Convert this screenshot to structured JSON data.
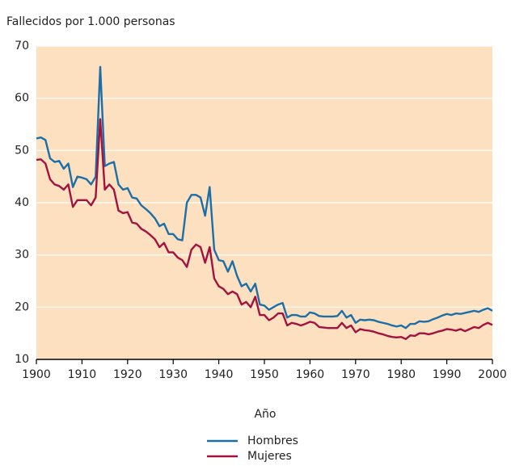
{
  "chart_data": {
    "type": "line",
    "title": "Fallecidos por 1.000 personas",
    "x_label": "Año",
    "x": [
      1900,
      1901,
      1902,
      1903,
      1904,
      1905,
      1906,
      1907,
      1908,
      1909,
      1910,
      1911,
      1912,
      1913,
      1914,
      1915,
      1916,
      1917,
      1918,
      1919,
      1920,
      1921,
      1922,
      1923,
      1924,
      1925,
      1926,
      1927,
      1928,
      1929,
      1930,
      1931,
      1932,
      1933,
      1934,
      1935,
      1936,
      1937,
      1938,
      1939,
      1940,
      1941,
      1942,
      1943,
      1944,
      1945,
      1946,
      1947,
      1948,
      1949,
      1950,
      1951,
      1952,
      1953,
      1954,
      1955,
      1956,
      1957,
      1958,
      1959,
      1960,
      1961,
      1962,
      1963,
      1964,
      1965,
      1966,
      1967,
      1968,
      1969,
      1970,
      1971,
      1972,
      1973,
      1974,
      1975,
      1976,
      1977,
      1978,
      1979,
      1980,
      1981,
      1982,
      1983,
      1984,
      1985,
      1986,
      1987,
      1988,
      1989,
      1990,
      1991,
      1992,
      1993,
      1994,
      1995,
      1996,
      1997,
      1998,
      1999,
      2000
    ],
    "series": [
      {
        "name": "Hombres",
        "color": "#1b6fa8",
        "values": [
          52.3,
          52.5,
          52,
          48.5,
          47.8,
          48,
          46.5,
          47.5,
          43,
          45,
          44.8,
          44.5,
          43.5,
          45,
          66,
          47,
          47.5,
          47.8,
          43.5,
          42.5,
          42.8,
          41,
          40.8,
          39.5,
          38.8,
          38,
          37,
          35.5,
          36,
          34,
          34,
          33,
          32.8,
          40,
          41.5,
          41.5,
          41,
          37.5,
          43,
          31,
          29,
          28.8,
          26.8,
          28.8,
          26,
          24,
          24.5,
          23,
          24.5,
          20.5,
          20.3,
          19.5,
          20,
          20.5,
          20.8,
          18,
          18.5,
          18.5,
          18.2,
          18.2,
          19,
          18.8,
          18.3,
          18.2,
          18.2,
          18.2,
          18.3,
          19.3,
          18,
          18.5,
          17,
          17.6,
          17.5,
          17.6,
          17.5,
          17.2,
          17,
          16.8,
          16.5,
          16.3,
          16.5,
          16,
          16.8,
          16.8,
          17.3,
          17.2,
          17.3,
          17.7,
          18,
          18.4,
          18.7,
          18.5,
          18.8,
          18.7,
          18.9,
          19.1,
          19.3,
          19.1,
          19.5,
          19.8,
          19.3
        ]
      },
      {
        "name": "Mujeres",
        "color": "#a3123f",
        "values": [
          48.2,
          48.3,
          47.5,
          44.5,
          43.5,
          43.2,
          42.5,
          43.5,
          39.2,
          40.5,
          40.5,
          40.5,
          39.5,
          41,
          56,
          42.5,
          43.5,
          42.5,
          38.5,
          38,
          38.2,
          36.2,
          36,
          35,
          34.5,
          33.8,
          33,
          31.5,
          32.3,
          30.5,
          30.5,
          29.5,
          29,
          27.7,
          31,
          32,
          31.5,
          28.5,
          31.5,
          25.5,
          24,
          23.5,
          22.5,
          23,
          22.5,
          20.5,
          21,
          20,
          22,
          18.5,
          18.5,
          17.5,
          18,
          18.8,
          18.8,
          16.5,
          17,
          16.8,
          16.5,
          16.8,
          17.2,
          17,
          16.2,
          16.1,
          16,
          16,
          16,
          17,
          16,
          16.5,
          15.2,
          15.8,
          15.6,
          15.5,
          15.3,
          15,
          14.8,
          14.5,
          14.3,
          14.2,
          14.3,
          13.9,
          14.6,
          14.5,
          15,
          15,
          14.8,
          15,
          15.3,
          15.5,
          15.8,
          15.7,
          15.5,
          15.8,
          15.4,
          15.8,
          16.2,
          16,
          16.6,
          17,
          16.6
        ]
      }
    ],
    "xlim": [
      1900,
      2000
    ],
    "xticks": [
      1900,
      1910,
      1920,
      1930,
      1940,
      1950,
      1960,
      1970,
      1980,
      1990,
      2000
    ],
    "ylim": [
      10,
      70
    ],
    "yticks": [
      10,
      20,
      30,
      40,
      50,
      60,
      70
    ],
    "grid": true,
    "plot_background": "#fde0bf",
    "legend": "bottom"
  }
}
